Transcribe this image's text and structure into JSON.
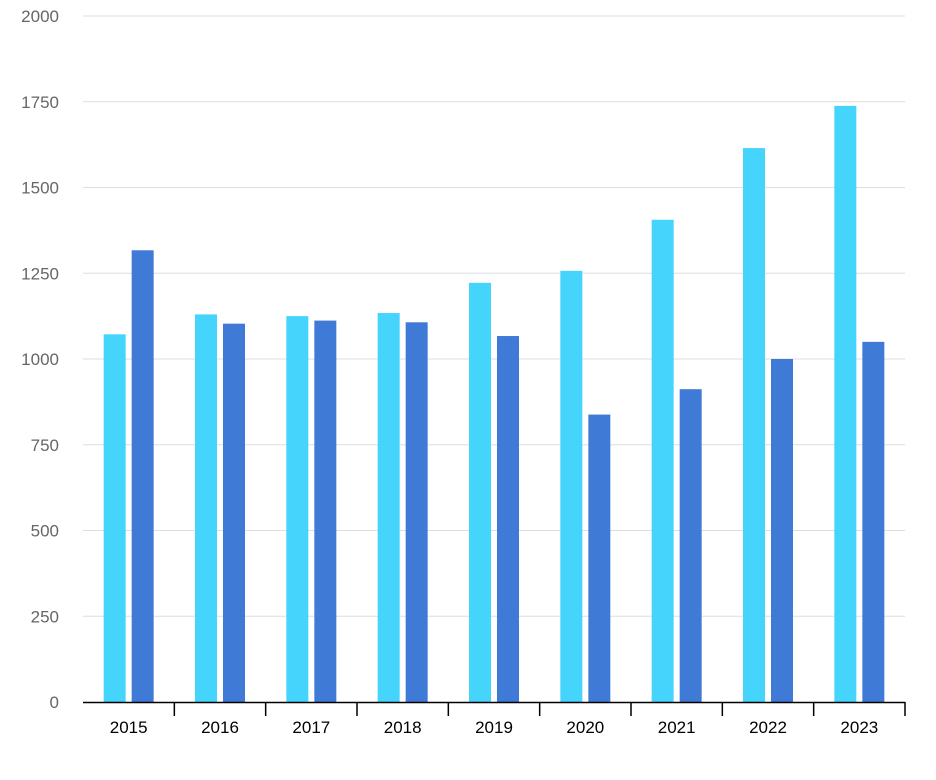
{
  "chart_data": {
    "type": "bar",
    "title": "",
    "xlabel": "",
    "ylabel": "",
    "categories": [
      "2015",
      "2016",
      "2017",
      "2018",
      "2019",
      "2020",
      "2021",
      "2022",
      "2023"
    ],
    "series": [
      {
        "color": "#45d4fc",
        "values": [
          1072,
          1130,
          1125,
          1134,
          1222,
          1257,
          1406,
          1615,
          1738
        ]
      },
      {
        "color": "#3f7bd6",
        "values": [
          1317,
          1103,
          1112,
          1107,
          1067,
          838,
          912,
          1000,
          1050
        ]
      }
    ],
    "ylim": [
      0,
      2000
    ],
    "yticks": [
      0,
      250,
      500,
      750,
      1000,
      1250,
      1500,
      1750,
      2000
    ],
    "grid": true,
    "legend": "none"
  },
  "colors": {
    "grid": "#dedede",
    "axis": "#000000",
    "ytick_text": "#666666"
  }
}
